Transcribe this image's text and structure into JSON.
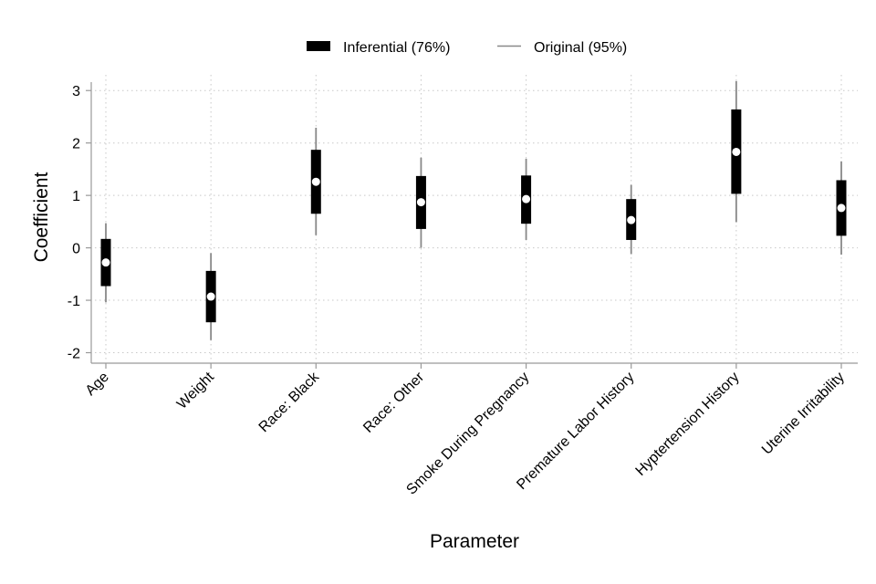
{
  "chart_data": {
    "type": "coefficient-interval",
    "xlabel": "Parameter",
    "ylabel": "Coefficient",
    "ylim": [
      -2.2,
      3.3
    ],
    "yticks": [
      -2,
      -1,
      0,
      1,
      2,
      3
    ],
    "grid": true,
    "legend_position": "top-center",
    "legend": [
      {
        "label": "Inferential (76%)",
        "style": "thick-bar"
      },
      {
        "label": "Original (95%)",
        "style": "thin-line"
      }
    ],
    "colors": {
      "inferential": "#000000",
      "original": "#888888",
      "point_fill": "#ffffff",
      "grid": "#c8c8c8",
      "axis": "#999999"
    },
    "parameters": [
      {
        "name": "Age",
        "estimate": -0.28,
        "inferential": [
          -0.73,
          0.17
        ],
        "original": [
          -1.04,
          0.47
        ]
      },
      {
        "name": "Weight",
        "estimate": -0.93,
        "inferential": [
          -1.42,
          -0.44
        ],
        "original": [
          -1.76,
          -0.1
        ]
      },
      {
        "name": "Race: Black",
        "estimate": 1.26,
        "inferential": [
          0.65,
          1.87
        ],
        "original": [
          0.24,
          2.29
        ]
      },
      {
        "name": "Race: Other",
        "estimate": 0.87,
        "inferential": [
          0.36,
          1.37
        ],
        "original": [
          0.0,
          1.72
        ]
      },
      {
        "name": "Smoke During Pregnancy",
        "estimate": 0.93,
        "inferential": [
          0.46,
          1.38
        ],
        "original": [
          0.15,
          1.7
        ]
      },
      {
        "name": "Premature Labor History",
        "estimate": 0.53,
        "inferential": [
          0.15,
          0.93
        ],
        "original": [
          -0.12,
          1.2
        ]
      },
      {
        "name": "Hyptertension History",
        "estimate": 1.83,
        "inferential": [
          1.03,
          2.64
        ],
        "original": [
          0.49,
          3.18
        ]
      },
      {
        "name": "Uterine Irritability",
        "estimate": 0.76,
        "inferential": [
          0.23,
          1.29
        ],
        "original": [
          -0.13,
          1.65
        ]
      }
    ]
  }
}
